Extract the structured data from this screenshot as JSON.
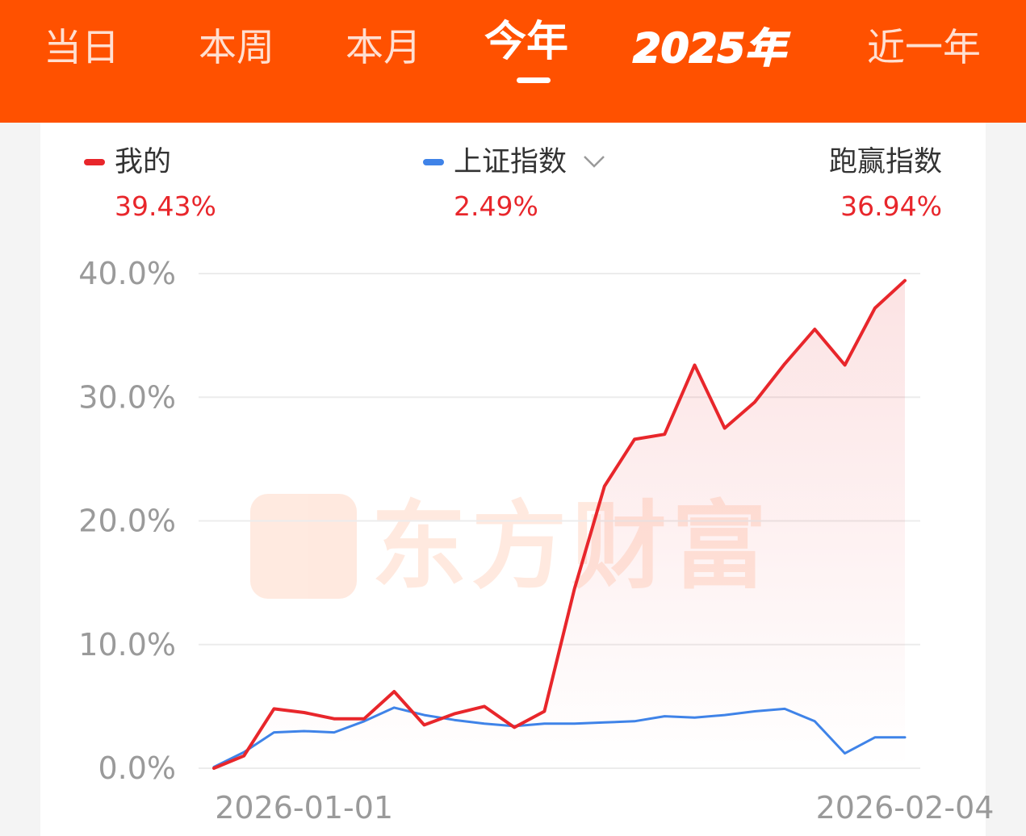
{
  "tabs": [
    {
      "label": "当日",
      "active": false
    },
    {
      "label": "本周",
      "active": false
    },
    {
      "label": "本月",
      "active": false
    },
    {
      "label": "今年",
      "active": true
    },
    {
      "label": "2025年",
      "active": false
    },
    {
      "label": "近一年",
      "active": false
    }
  ],
  "legend": {
    "mine": {
      "label": "我的",
      "value": "39.43%",
      "color": "#e8262b"
    },
    "index": {
      "label": "上证指数",
      "value": "2.49%",
      "color": "#3f83e8",
      "dropdown_icon": "chevron-down-icon"
    },
    "beat": {
      "label": "跑赢指数",
      "value": "36.94%"
    }
  },
  "watermark": {
    "text": "东方财富"
  },
  "colors": {
    "brand": "#ff5100",
    "up": "#e8262b",
    "index_line": "#3f83e8"
  },
  "chart_data": {
    "type": "line",
    "y_ticks": [
      "0.0%",
      "10.0%",
      "20.0%",
      "30.0%",
      "40.0%"
    ],
    "ylim": [
      0,
      40
    ],
    "x_tick_labels": [
      {
        "label": "2026-01-01",
        "index": 3
      },
      {
        "label": "2026-02-04",
        "index": 23
      }
    ],
    "grid": true,
    "series": [
      {
        "name": "我的",
        "color": "#e8262b",
        "area_fill": true,
        "values": [
          0.0,
          1.0,
          4.8,
          4.5,
          4.0,
          4.0,
          6.2,
          3.5,
          4.4,
          5.0,
          3.3,
          4.6,
          14.5,
          22.8,
          26.6,
          27.0,
          32.6,
          27.5,
          29.6,
          32.7,
          35.5,
          32.6,
          37.2,
          39.43
        ]
      },
      {
        "name": "上证指数",
        "color": "#3f83e8",
        "area_fill": false,
        "values": [
          0.1,
          1.3,
          2.9,
          3.0,
          2.9,
          3.8,
          4.9,
          4.3,
          3.9,
          3.6,
          3.4,
          3.6,
          3.6,
          3.7,
          3.8,
          4.2,
          4.1,
          4.3,
          4.6,
          4.8,
          3.8,
          1.2,
          2.49,
          2.49
        ]
      }
    ]
  }
}
